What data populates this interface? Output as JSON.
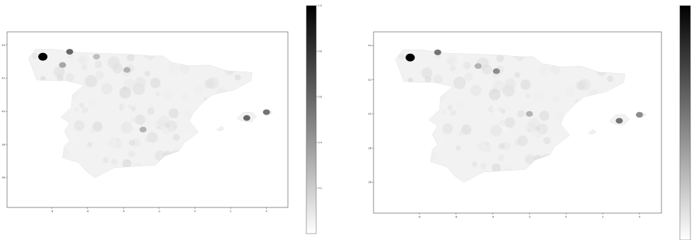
{
  "colors": {
    "background": "#ffffff",
    "frame": "#444444",
    "map_base": "#f2f2f2",
    "region_high": "#111111",
    "colorbar_top": "#000000",
    "colorbar_bottom": "#ffffff"
  },
  "chart_data": [
    {
      "type": "heatmap",
      "subject": "choropleth map of Spain municipalities, grayscale",
      "xlabel": "",
      "ylabel": "",
      "xlim": [
        -10.5,
        5.2
      ],
      "ylim": [
        34.2,
        44.8
      ],
      "x_ticks": [
        -8,
        -6,
        -4,
        -2,
        0,
        2,
        4
      ],
      "x_tick_labels": [
        "-8",
        "-6",
        "-4",
        "-2",
        "0",
        "2",
        "4"
      ],
      "y_ticks": [
        36,
        38,
        40,
        42,
        44
      ],
      "y_tick_labels": [
        "36",
        "38",
        "40",
        "42",
        "44"
      ],
      "colormap": "gray_r",
      "colorbar_range": [
        0,
        1
      ],
      "colorbar_ticks": [
        0.2,
        0.4,
        0.6,
        0.8,
        1.0
      ],
      "colorbar_tick_labels": [
        "0.2",
        "0.4",
        "0.6",
        "0.8",
        "1.0"
      ],
      "highlights": [
        {
          "lon": -8.5,
          "lat": 43.3,
          "value": 1.0
        },
        {
          "lon": -7.0,
          "lat": 43.6,
          "value": 0.6
        },
        {
          "lon": -7.4,
          "lat": 42.8,
          "value": 0.35
        },
        {
          "lon": -3.8,
          "lat": 42.5,
          "value": 0.3
        },
        {
          "lon": -5.5,
          "lat": 43.3,
          "value": 0.25
        },
        {
          "lon": -2.9,
          "lat": 38.9,
          "value": 0.3
        },
        {
          "lon": 2.9,
          "lat": 39.6,
          "value": 0.6
        },
        {
          "lon": 4.0,
          "lat": 39.95,
          "value": 0.55
        }
      ]
    },
    {
      "type": "heatmap",
      "subject": "choropleth map of Spain municipalities, grayscale",
      "xlabel": "",
      "ylabel": "",
      "xlim": [
        -10.5,
        5.2
      ],
      "ylim": [
        34.2,
        44.8
      ],
      "x_ticks": [
        -8,
        -6,
        -4,
        -2,
        0,
        2,
        4
      ],
      "x_tick_labels": [
        "-8",
        "-6",
        "-4",
        "-2",
        "0",
        "2",
        "4"
      ],
      "y_ticks": [
        36,
        38,
        40,
        42,
        44
      ],
      "y_tick_labels": [
        "36",
        "38",
        "40",
        "42",
        "44"
      ],
      "colormap": "gray_r",
      "colorbar_range": [
        0,
        1
      ],
      "colorbar_ticks": [],
      "colorbar_tick_labels": [],
      "highlights": [
        {
          "lon": -8.5,
          "lat": 43.3,
          "value": 1.0
        },
        {
          "lon": -7.0,
          "lat": 43.6,
          "value": 0.55
        },
        {
          "lon": -3.8,
          "lat": 42.5,
          "value": 0.45
        },
        {
          "lon": -4.8,
          "lat": 42.8,
          "value": 0.3
        },
        {
          "lon": -2.0,
          "lat": 40.0,
          "value": 0.3
        },
        {
          "lon": 2.9,
          "lat": 39.6,
          "value": 0.55
        },
        {
          "lon": 4.0,
          "lat": 39.95,
          "value": 0.45
        }
      ]
    }
  ]
}
